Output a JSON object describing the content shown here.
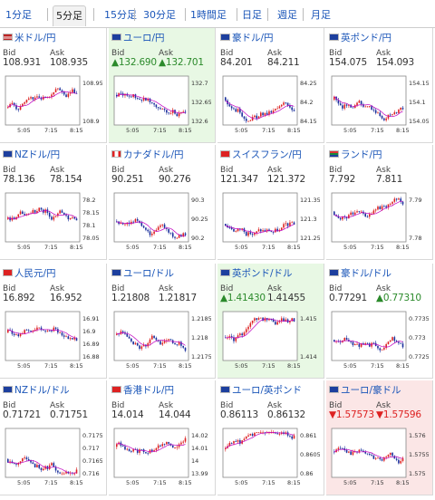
{
  "tabs": [
    {
      "label": "1分足",
      "active": false
    },
    {
      "label": "5分足",
      "active": true
    },
    {
      "label": "15分足",
      "active": false
    },
    {
      "label": "30分足",
      "active": false
    },
    {
      "label": "1時間足",
      "active": false
    },
    {
      "label": "日足",
      "active": false
    },
    {
      "label": "週足",
      "active": false
    },
    {
      "label": "月足",
      "active": false
    }
  ],
  "bid_label": "Bid",
  "ask_label": "Ask",
  "x_ticks": [
    "5:05",
    "7:15",
    "8:15"
  ],
  "colors": {
    "up": "#2b8a2b",
    "down": "#dd2222",
    "link": "#1a55b8",
    "ma": "#c000c0",
    "candle_up": "#dd2222",
    "candle_down": "#1a2f9c"
  },
  "pairs": [
    {
      "name": "米ドル/円",
      "flag": "us",
      "bid": "108.931",
      "ask": "108.935",
      "trend": "none",
      "y_ticks": [
        "108.95",
        "108.9"
      ]
    },
    {
      "name": "ユーロ/円",
      "flag": "eu",
      "bid": "▲132.690",
      "ask": "▲132.701",
      "trend": "up",
      "y_ticks": [
        "132.7",
        "132.65",
        "132.6"
      ]
    },
    {
      "name": "豪ドル/円",
      "flag": "au",
      "bid": "84.201",
      "ask": "84.211",
      "trend": "none",
      "y_ticks": [
        "84.25",
        "84.2",
        "84.15"
      ]
    },
    {
      "name": "英ポンド/円",
      "flag": "gb",
      "bid": "154.075",
      "ask": "154.093",
      "trend": "none",
      "y_ticks": [
        "154.15",
        "154.1",
        "154.05"
      ]
    },
    {
      "name": "NZドル/円",
      "flag": "nz",
      "bid": "78.136",
      "ask": "78.154",
      "trend": "none",
      "y_ticks": [
        "78.2",
        "78.15",
        "78.1",
        "78.05"
      ]
    },
    {
      "name": "カナダドル/円",
      "flag": "ca",
      "bid": "90.251",
      "ask": "90.276",
      "trend": "none",
      "y_ticks": [
        "90.3",
        "90.25",
        "90.2"
      ]
    },
    {
      "name": "スイスフラン/円",
      "flag": "ch",
      "bid": "121.347",
      "ask": "121.372",
      "trend": "none",
      "y_ticks": [
        "121.35",
        "121.3",
        "121.25"
      ]
    },
    {
      "name": "ランド/円",
      "flag": "za",
      "bid": "7.792",
      "ask": "7.811",
      "trend": "none",
      "y_ticks": [
        "7.79",
        "7.78"
      ]
    },
    {
      "name": "人民元/円",
      "flag": "cn",
      "bid": "16.892",
      "ask": "16.952",
      "trend": "none",
      "y_ticks": [
        "16.91",
        "16.9",
        "16.89",
        "16.88"
      ]
    },
    {
      "name": "ユーロ/ドル",
      "flag": "eu",
      "bid": "1.21808",
      "ask": "1.21817",
      "trend": "none",
      "y_ticks": [
        "1.2185",
        "1.218",
        "1.2175"
      ]
    },
    {
      "name": "英ポンド/ドル",
      "flag": "gb",
      "bid": "▲1.41430",
      "ask": "1.41455",
      "trend": "up",
      "y_ticks": [
        "1.415",
        "1.414"
      ]
    },
    {
      "name": "豪ドル/ドル",
      "flag": "au",
      "bid": "0.77291",
      "ask": "▲0.77310",
      "trend": "mixed",
      "y_ticks": [
        "0.7735",
        "0.773",
        "0.7725"
      ]
    },
    {
      "name": "NZドル/ドル",
      "flag": "nz",
      "bid": "0.71721",
      "ask": "0.71751",
      "trend": "none",
      "y_ticks": [
        "0.7175",
        "0.717",
        "0.7165",
        "0.716"
      ]
    },
    {
      "name": "香港ドル/円",
      "flag": "hk",
      "bid": "14.014",
      "ask": "14.044",
      "trend": "none",
      "y_ticks": [
        "14.02",
        "14.01",
        "14",
        "13.99"
      ]
    },
    {
      "name": "ユーロ/英ポンド",
      "flag": "eu",
      "bid": "0.86113",
      "ask": "0.86132",
      "trend": "none",
      "y_ticks": [
        "0.861",
        "0.8605",
        "0.86"
      ]
    },
    {
      "name": "ユーロ/豪ドル",
      "flag": "eu",
      "bid": "▼1.57573",
      "ask": "▼1.57596",
      "trend": "down",
      "y_ticks": [
        "1.576",
        "1.5755",
        "1.575"
      ]
    }
  ]
}
